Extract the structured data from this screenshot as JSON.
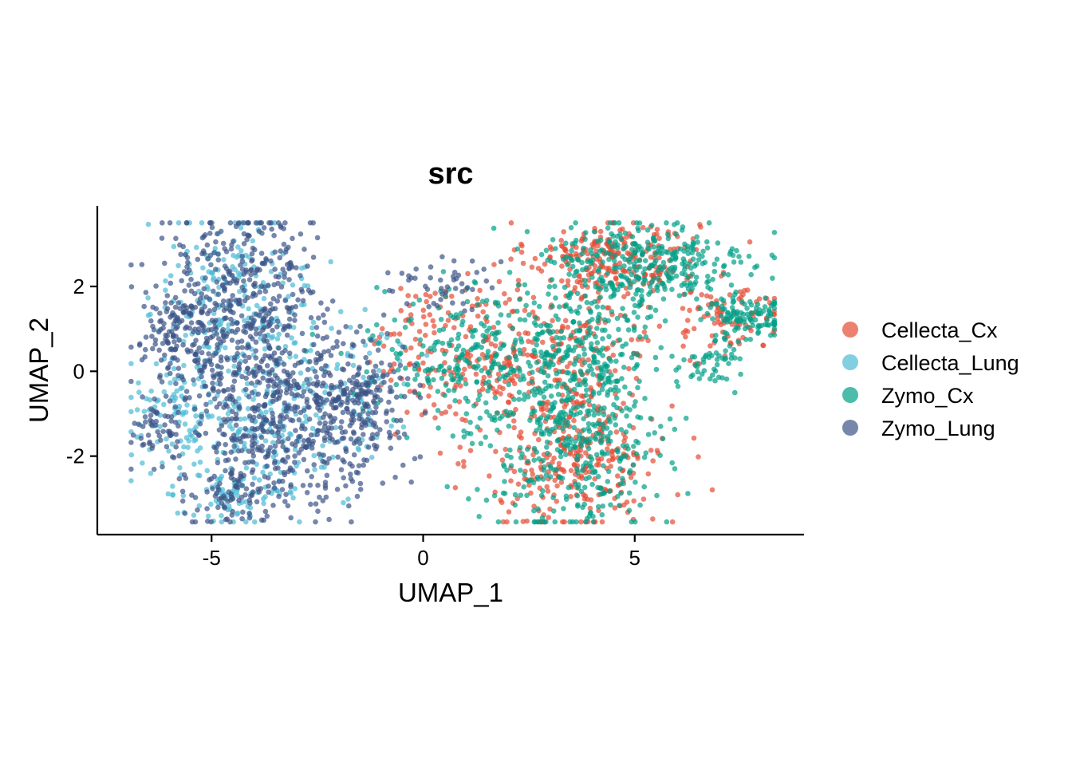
{
  "chart_data": {
    "type": "scatter",
    "title": "src",
    "xlabel": "UMAP_1",
    "ylabel": "UMAP_2",
    "xlim": [
      -7.7,
      9.0
    ],
    "ylim": [
      -3.85,
      3.9
    ],
    "x_ticks": [
      {
        "value": -5,
        "label": "-5"
      },
      {
        "value": 0,
        "label": "0"
      },
      {
        "value": 5,
        "label": "5"
      }
    ],
    "y_ticks": [
      {
        "value": -2,
        "label": "-2"
      },
      {
        "value": 0,
        "label": "0"
      },
      {
        "value": 2,
        "label": "2"
      }
    ],
    "grid": false,
    "legend_position": "right",
    "point_opacity": 0.7,
    "series": [
      {
        "name": "Cellecta_Cx",
        "color": "#E64B35",
        "clusters": [
          {
            "cx": 4.5,
            "cy": 2.7,
            "sx": 1.0,
            "sy": 0.45,
            "n": 230
          },
          {
            "cx": 3.6,
            "cy": -1.9,
            "sx": 1.1,
            "sy": 1.0,
            "n": 330
          },
          {
            "cx": 1.2,
            "cy": 0.5,
            "sx": 1.2,
            "sy": 0.8,
            "n": 220
          },
          {
            "cx": 7.2,
            "cy": 1.3,
            "sx": 0.7,
            "sy": 0.4,
            "n": 90
          },
          {
            "cx": 3.8,
            "cy": 0.7,
            "sx": 0.9,
            "sy": 0.8,
            "n": 120
          }
        ]
      },
      {
        "name": "Cellecta_Lung",
        "color": "#4DBBD5",
        "clusters": [
          {
            "cx": -4.5,
            "cy": 1.6,
            "sx": 0.9,
            "sy": 1.1,
            "n": 210
          },
          {
            "cx": -3.6,
            "cy": -1.3,
            "sx": 1.2,
            "sy": 1.0,
            "n": 230
          },
          {
            "cx": -5.8,
            "cy": -0.9,
            "sx": 0.6,
            "sy": 0.6,
            "n": 80
          },
          {
            "cx": -4.6,
            "cy": -3.1,
            "sx": 0.5,
            "sy": 0.3,
            "n": 60
          },
          {
            "cx": -1.4,
            "cy": 0.0,
            "sx": 0.6,
            "sy": 0.9,
            "n": 45
          }
        ]
      },
      {
        "name": "Zymo_Cx",
        "color": "#00A087",
        "clusters": [
          {
            "cx": 5.2,
            "cy": 2.5,
            "sx": 1.3,
            "sy": 0.55,
            "n": 330
          },
          {
            "cx": 3.6,
            "cy": -1.6,
            "sx": 1.0,
            "sy": 1.1,
            "n": 420
          },
          {
            "cx": 1.2,
            "cy": 0.4,
            "sx": 1.2,
            "sy": 0.8,
            "n": 280
          },
          {
            "cx": 7.6,
            "cy": 1.3,
            "sx": 0.5,
            "sy": 0.3,
            "n": 110
          },
          {
            "cx": 4.0,
            "cy": 0.8,
            "sx": 0.8,
            "sy": 0.7,
            "n": 160
          },
          {
            "cx": 6.8,
            "cy": 0.2,
            "sx": 0.4,
            "sy": 0.3,
            "n": 50
          }
        ]
      },
      {
        "name": "Zymo_Lung",
        "color": "#3C5488",
        "clusters": [
          {
            "cx": -4.4,
            "cy": 1.6,
            "sx": 0.9,
            "sy": 1.1,
            "n": 450
          },
          {
            "cx": -3.4,
            "cy": -1.1,
            "sx": 1.3,
            "sy": 1.0,
            "n": 520
          },
          {
            "cx": -1.6,
            "cy": -0.6,
            "sx": 0.6,
            "sy": 0.7,
            "n": 190
          },
          {
            "cx": -6.0,
            "cy": 0.9,
            "sx": 0.4,
            "sy": 0.35,
            "n": 70
          },
          {
            "cx": -6.3,
            "cy": -1.3,
            "sx": 0.3,
            "sy": 0.3,
            "n": 45
          },
          {
            "cx": -4.5,
            "cy": -3.1,
            "sx": 0.4,
            "sy": 0.3,
            "n": 55
          },
          {
            "cx": 0.4,
            "cy": 2.1,
            "sx": 0.7,
            "sy": 0.35,
            "n": 45
          }
        ]
      }
    ]
  }
}
